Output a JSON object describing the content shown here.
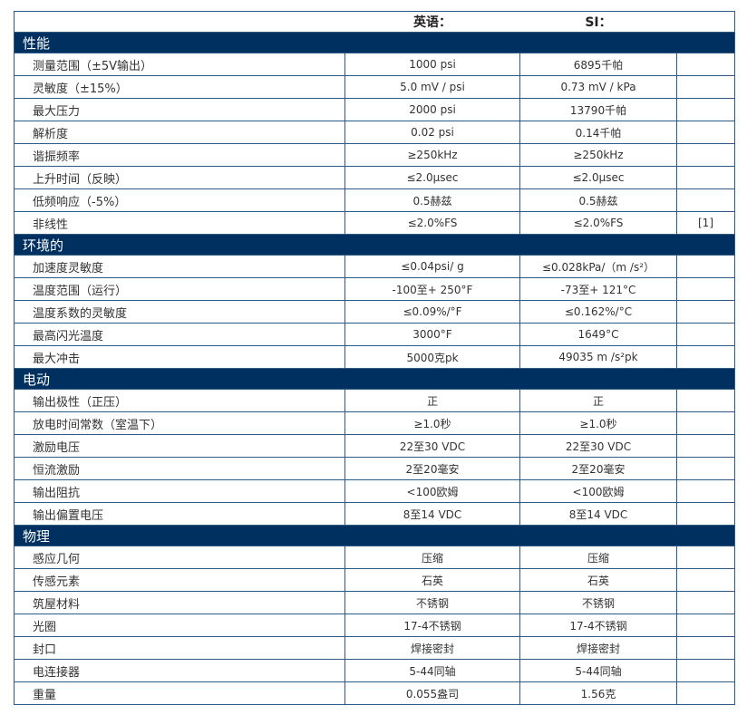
{
  "header": {
    "english": "英语：",
    "si": "SI："
  },
  "sections": [
    {
      "title": "性能",
      "rows": [
        [
          "测量范围（±5V输出）",
          "1000 psi",
          "6895千帕",
          ""
        ],
        [
          "灵敏度（±15%）",
          "5.0 mV / psi",
          "0.73 mV / kPa",
          ""
        ],
        [
          "最大压力",
          "2000 psi",
          "13790千帕",
          ""
        ],
        [
          "解析度",
          "0.02 psi",
          "0.14千帕",
          ""
        ],
        [
          "谐振频率",
          "≥250kHz",
          "≥250kHz",
          ""
        ],
        [
          "上升时间（反映）",
          "≤2.0μsec",
          "≤2.0μsec",
          ""
        ],
        [
          "低频响应（-5%）",
          "0.5赫兹",
          "0.5赫兹",
          ""
        ],
        [
          "非线性",
          "≤2.0%FS",
          "≤2.0%FS",
          "[1]"
        ]
      ]
    },
    {
      "title": "环境的",
      "rows": [
        [
          "加速度灵敏度",
          "≤0.04psi/ g",
          "≤0.028kPa/（m /s²）",
          ""
        ],
        [
          "温度范围（运行）",
          "-100至+ 250°F",
          "-73至+ 121°C",
          ""
        ],
        [
          "温度系数的灵敏度",
          "≤0.09%/°F",
          "≤0.162%/°C",
          ""
        ],
        [
          "最高闪光温度",
          "3000°F",
          "1649°C",
          ""
        ],
        [
          "最大冲击",
          "5000克pk",
          "49035 m /s²pk",
          ""
        ]
      ]
    },
    {
      "title": "电动",
      "rows": [
        [
          "输出极性（正压）",
          "正",
          "正",
          ""
        ],
        [
          "放电时间常数（室温下）",
          "≥1.0秒",
          "≥1.0秒",
          ""
        ],
        [
          "激励电压",
          "22至30 VDC",
          "22至30 VDC",
          ""
        ],
        [
          "恒流激励",
          "2至20毫安",
          "2至20毫安",
          ""
        ],
        [
          "输出阻抗",
          "<100欧姆",
          "<100欧姆",
          ""
        ],
        [
          "输出偏置电压",
          "8至14 VDC",
          "8至14 VDC",
          ""
        ]
      ]
    },
    {
      "title": "物理",
      "rows": [
        [
          "感应几何",
          "压缩",
          "压缩",
          ""
        ],
        [
          "传感元素",
          "石英",
          "石英",
          ""
        ],
        [
          "筑屋材料",
          "不锈钢",
          "不锈钢",
          ""
        ],
        [
          "光圈",
          "17-4不锈钢",
          "17-4不锈钢",
          ""
        ],
        [
          "封口",
          "焊接密封",
          "焊接密封",
          ""
        ],
        [
          "电连接器",
          "5-44同轴",
          "5-44同轴",
          ""
        ],
        [
          "重量",
          "0.055盎司",
          "1.56克",
          ""
        ]
      ]
    }
  ]
}
